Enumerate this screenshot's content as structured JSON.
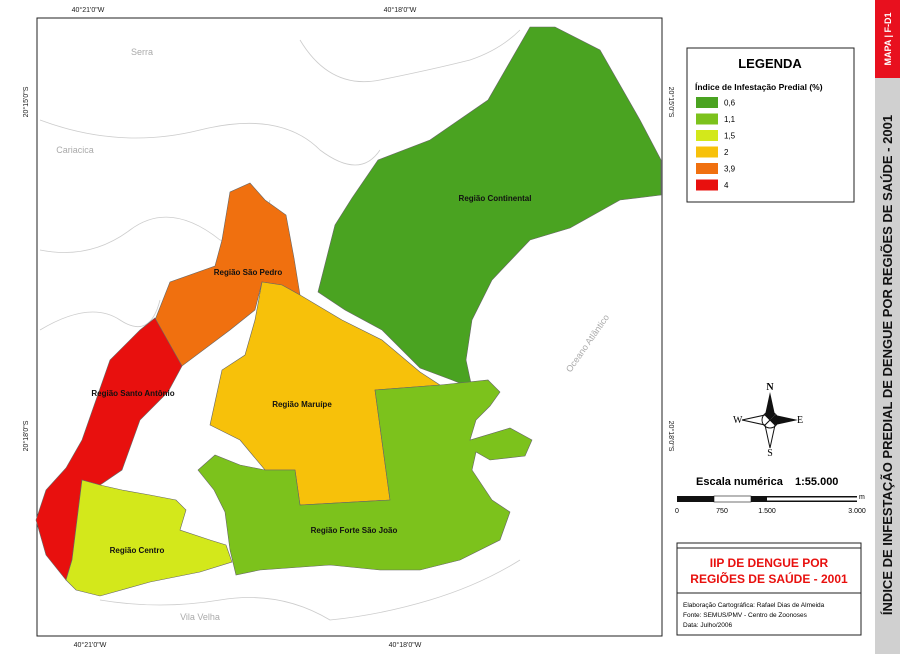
{
  "sidebar": {
    "tag": "MAPA | F-D1",
    "title": "ÍNDICE DE INFESTAÇÃO PREDIAL DE DENGUE POR REGIÕES DE SAÚDE - 2001"
  },
  "coordinates": {
    "top": [
      "40°21'0\"W",
      "40°18'0\"W"
    ],
    "bottom": [
      "40°21'0\"W",
      "40°18'0\"W"
    ],
    "left": [
      "20°15'0\"S",
      "20°18'0\"S"
    ],
    "right": [
      "20°15'0\"S",
      "20°18'0\"S"
    ]
  },
  "places": [
    "Serra",
    "Cariacica",
    "Vila Velha",
    "Oceano Atlântico"
  ],
  "regions": [
    {
      "label": "Região Continental",
      "color": "#4aa321"
    },
    {
      "label": "Região São Pedro",
      "color": "#f0700f"
    },
    {
      "label": "Região Santo Antônio",
      "color": "#e8100e"
    },
    {
      "label": "Região Maruípe",
      "color": "#f7c10a"
    },
    {
      "label": "Região Forte São João",
      "color": "#7cc21c"
    },
    {
      "label": "Região Centro",
      "color": "#d3e81b"
    }
  ],
  "legend": {
    "title": "LEGENDA",
    "subtitle": "Índice de Infestação Predial (%)",
    "items": [
      {
        "label": "0,6",
        "color": "#4aa321"
      },
      {
        "label": "1,1",
        "color": "#7cc21c"
      },
      {
        "label": "1,5",
        "color": "#d3e81b"
      },
      {
        "label": "2",
        "color": "#f7c10a"
      },
      {
        "label": "3,9",
        "color": "#f0700f"
      },
      {
        "label": "4",
        "color": "#e8100e"
      }
    ]
  },
  "compass": {
    "n": "N",
    "s": "S",
    "e": "E",
    "w": "W"
  },
  "scale": {
    "label": "Escala numérica",
    "ratio": "1:55.000",
    "ticks": [
      "0",
      "750",
      "1.500",
      "3.000"
    ],
    "unit": "m"
  },
  "title_box": {
    "line1": "IIP DE DENGUE POR",
    "line2": "REGIÕES DE SAÚDE - 2001"
  },
  "credits": [
    "Elaboração Cartográfica: Rafael Dias de Almeida",
    "Fonte: SEMUS/PMV - Centro de Zoonoses",
    "Data: Julho/2006"
  ]
}
